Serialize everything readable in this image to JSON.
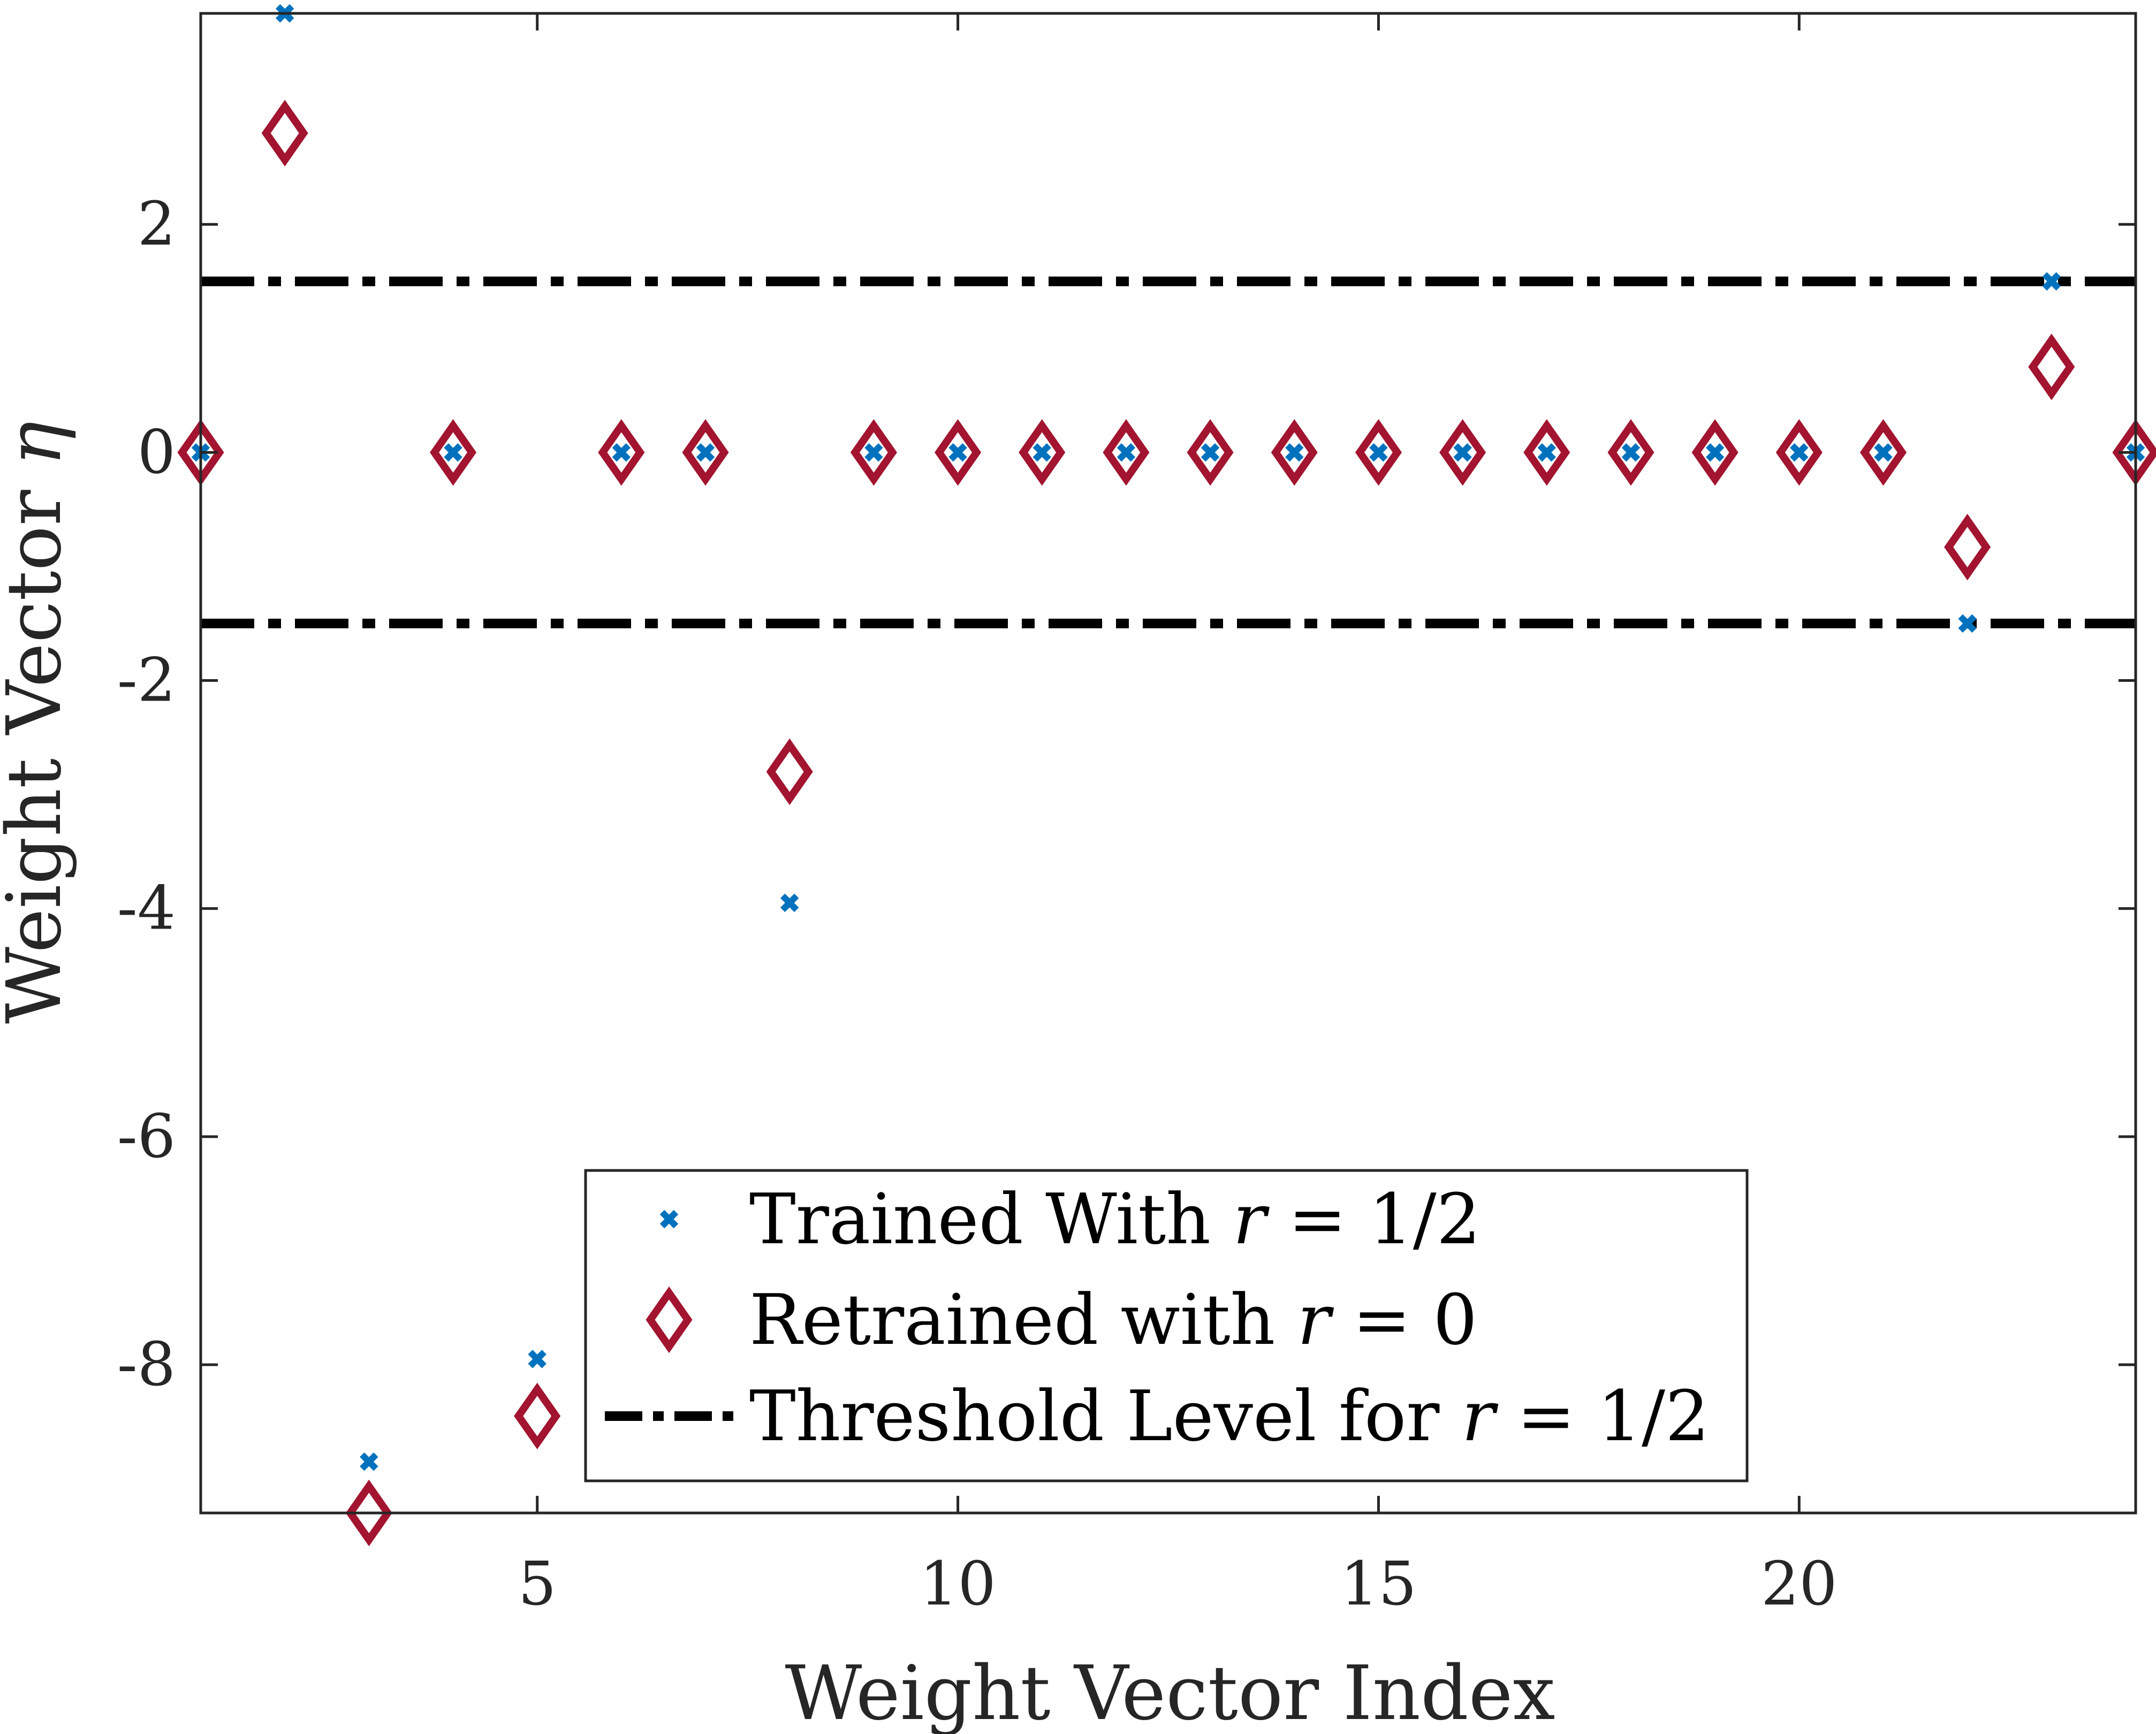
{
  "chart_data": {
    "type": "scatter",
    "title": "",
    "xlabel": "Weight Vector Index",
    "ylabel_text": "Weight Vector ",
    "ylabel_symbol": "η",
    "xlim": [
      1,
      24
    ],
    "ylim": [
      -9.3,
      3.85
    ],
    "xticks": [
      5,
      10,
      15,
      20
    ],
    "yticks": [
      2,
      0,
      -2,
      -4,
      -6,
      -8
    ],
    "xtick_labels": [
      "5",
      "10",
      "15",
      "20"
    ],
    "ytick_labels": [
      "2",
      "0",
      "-2",
      "-4",
      "-6",
      "-8"
    ],
    "x": [
      1,
      2,
      3,
      4,
      5,
      6,
      7,
      8,
      9,
      10,
      11,
      12,
      13,
      14,
      15,
      16,
      17,
      18,
      19,
      20,
      21,
      22,
      23,
      24
    ],
    "series": [
      {
        "name": "Trained With r = 1/2",
        "marker": "x",
        "color": "#0072BD",
        "values": [
          0,
          3.85,
          -8.85,
          0,
          -7.95,
          0,
          0,
          -3.95,
          0,
          0,
          0,
          0,
          0,
          0,
          0,
          0,
          0,
          0,
          0,
          0,
          0,
          -1.5,
          1.5,
          0
        ]
      },
      {
        "name": "Retrained with r = 0",
        "marker": "diamond",
        "color": "#A2142F",
        "values": [
          0,
          2.8,
          -9.3,
          0,
          -8.45,
          0,
          0,
          -2.8,
          0,
          0,
          0,
          0,
          0,
          0,
          0,
          0,
          0,
          0,
          0,
          0,
          0,
          -0.83,
          0.75,
          0
        ]
      }
    ],
    "thresholds": {
      "name": "Threshold Level for r = 1/2",
      "values": [
        1.5,
        -1.5
      ],
      "color": "#000000",
      "style": "dash-dot"
    },
    "legend": {
      "location": "bottom-center",
      "entries": [
        {
          "text": "Trained With ",
          "var": "r",
          "rest": " = 1/2"
        },
        {
          "text": "Retrained with ",
          "var": "r",
          "rest": " = 0"
        },
        {
          "text": "Threshold Level for ",
          "var": "r",
          "rest": " = 1/2"
        }
      ]
    },
    "grid": false
  }
}
